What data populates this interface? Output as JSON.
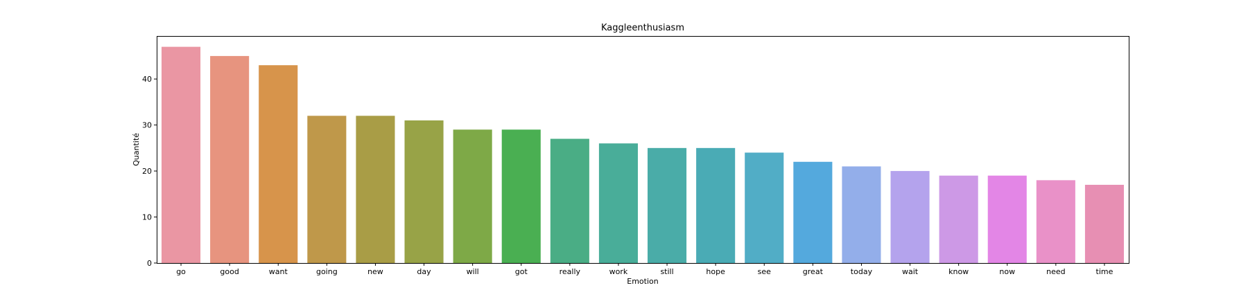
{
  "chart_data": {
    "type": "bar",
    "title": "Kaggleenthusiasm",
    "xlabel": "Emotion",
    "ylabel": "Quantité",
    "ylim": [
      0,
      49.35
    ],
    "yticks": [
      0,
      10,
      20,
      30,
      40
    ],
    "grid": false,
    "categories": [
      "go",
      "good",
      "want",
      "going",
      "new",
      "day",
      "will",
      "got",
      "really",
      "work",
      "still",
      "hope",
      "see",
      "great",
      "today",
      "wait",
      "know",
      "now",
      "need",
      "time"
    ],
    "values": [
      47,
      45,
      43,
      32,
      32,
      31,
      29,
      29,
      27,
      26,
      25,
      25,
      24,
      22,
      21,
      20,
      19,
      19,
      18,
      17
    ],
    "colors": [
      "#ea96a3",
      "#e7947f",
      "#d7944b",
      "#bf984a",
      "#a99d46",
      "#98a347",
      "#7ea947",
      "#4aaf52",
      "#4aad85",
      "#49ad99",
      "#4aaca8",
      "#4aabb5",
      "#51adc6",
      "#54a9dd",
      "#93aeea",
      "#b4a3ed",
      "#cd99e6",
      "#e386e6",
      "#e991c8",
      "#e78fb3"
    ]
  }
}
